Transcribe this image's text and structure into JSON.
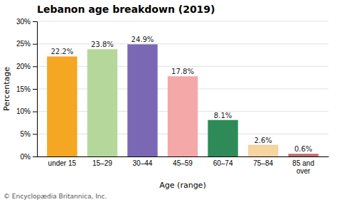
{
  "chart_data": {
    "type": "bar",
    "title": "Lebanon age breakdown (2019)",
    "categories": [
      "under 15",
      "15–29",
      "30–44",
      "45–59",
      "60–74",
      "75–84",
      "85 and\nover"
    ],
    "values": [
      22.2,
      23.8,
      24.9,
      17.8,
      8.1,
      2.6,
      0.6
    ],
    "value_labels": [
      "22.2%",
      "23.8%",
      "24.9%",
      "17.8%",
      "8.1%",
      "2.6%",
      "0.6%"
    ],
    "data_labels": true,
    "colors": [
      "#f5a623",
      "#b5d89a",
      "#7b68b5",
      "#f4a8a8",
      "#2e8b57",
      "#f5d5a0",
      "#c07070"
    ],
    "xlabel": "Age (range)",
    "ylabel": "Percentage",
    "ylim": [
      0,
      30
    ],
    "yticks": [
      {
        "value": 0,
        "label": "0%"
      },
      {
        "value": 5,
        "label": "5%"
      },
      {
        "value": 10,
        "label": "10%"
      },
      {
        "value": 15,
        "label": "15%"
      },
      {
        "value": 20,
        "label": "20%"
      },
      {
        "value": 25,
        "label": "25%"
      },
      {
        "value": 30,
        "label": "30%"
      }
    ],
    "grid": true,
    "annotations": [
      "© Encyclopædia Britannica, Inc."
    ]
  }
}
